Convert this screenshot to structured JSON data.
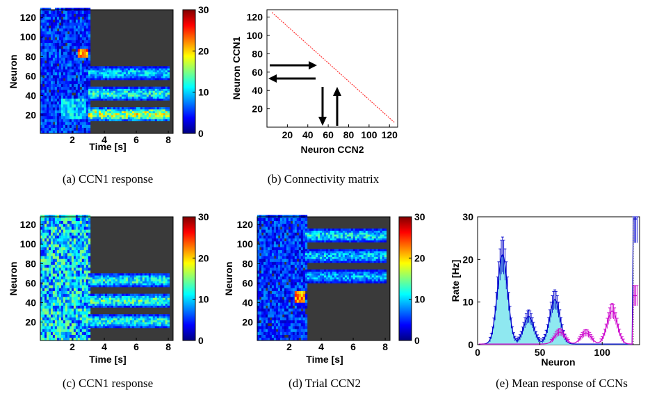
{
  "colorbar": {
    "min": 0,
    "max": 30,
    "ticks": [
      0,
      10,
      20,
      30
    ]
  },
  "chart_data": [
    {
      "id": "a",
      "type": "heatmap",
      "caption": "(a) CCN1 response",
      "xlabel": "Time [s]",
      "ylabel": "Neuron",
      "xlim": [
        0,
        8.3
      ],
      "ylim": [
        1,
        128
      ],
      "xticks": [
        2,
        4,
        6,
        8
      ],
      "yticks": [
        20,
        40,
        60,
        80,
        100,
        120
      ],
      "stim_end_s": 3.0,
      "input_bursts": [
        {
          "neuron": 82,
          "t_start": 2.3,
          "t_end": 2.9
        }
      ],
      "bands": [
        {
          "neuron": 20,
          "t_start": 3.0,
          "t_end": 8.0,
          "level": 18
        },
        {
          "neuron": 41,
          "t_start": 3.0,
          "t_end": 8.0,
          "level": 13
        },
        {
          "neuron": 62,
          "t_start": 3.0,
          "t_end": 8.0,
          "level": 11
        }
      ]
    },
    {
      "id": "b",
      "type": "line",
      "caption": "(b) Connectivity matrix",
      "xlabel": "Neuron CCN2",
      "ylabel": "Neuron CCN1",
      "xlim": [
        0,
        128
      ],
      "ylim": [
        0,
        128
      ],
      "xticks": [
        20,
        40,
        60,
        80,
        100,
        120
      ],
      "yticks": [
        20,
        40,
        60,
        80,
        100,
        120
      ],
      "diagonal": {
        "x": [
          5,
          125
        ],
        "y": [
          125,
          5
        ],
        "color": "#ff3333"
      }
    },
    {
      "id": "c",
      "type": "heatmap",
      "caption": "(c) CCN1 response",
      "xlabel": "Time [s]",
      "ylabel": "Neuron",
      "xlim": [
        0,
        8.3
      ],
      "ylim": [
        1,
        128
      ],
      "xticks": [
        2,
        4,
        6,
        8
      ],
      "yticks": [
        20,
        40,
        60,
        80,
        100,
        120
      ],
      "stim_end_s": 3.0,
      "bands": [
        {
          "neuron": 20,
          "t_start": 3.0,
          "t_end": 8.0,
          "level": 13
        },
        {
          "neuron": 41,
          "t_start": 3.0,
          "t_end": 8.0,
          "level": 14
        },
        {
          "neuron": 62,
          "t_start": 3.0,
          "t_end": 8.0,
          "level": 13
        }
      ]
    },
    {
      "id": "d",
      "type": "heatmap",
      "caption": "(d) Trial CCN2",
      "xlabel": "Time [s]",
      "ylabel": "Neuron",
      "xlim": [
        0,
        8.3
      ],
      "ylim": [
        1,
        128
      ],
      "xticks": [
        2,
        4,
        6,
        8
      ],
      "yticks": [
        20,
        40,
        60,
        80,
        100,
        120
      ],
      "stim_end_s": 3.0,
      "input_bursts": [
        {
          "neuron": 45,
          "t_start": 2.3,
          "t_end": 2.9
        }
      ],
      "bands": [
        {
          "neuron": 66,
          "t_start": 3.0,
          "t_end": 8.0,
          "level": 10
        },
        {
          "neuron": 87,
          "t_start": 3.0,
          "t_end": 8.0,
          "level": 11
        },
        {
          "neuron": 108,
          "t_start": 3.0,
          "t_end": 8.0,
          "level": 12
        }
      ]
    },
    {
      "id": "e",
      "type": "line",
      "caption": "(e) Mean response of CCNs",
      "xlabel": "Neuron",
      "ylabel": "Rate [Hz]",
      "xlim": [
        0,
        130
      ],
      "ylim": [
        0,
        30
      ],
      "xticks": [
        0,
        50,
        100
      ],
      "yticks": [
        0,
        10,
        20,
        30
      ],
      "series": [
        {
          "color": "#0000cc",
          "fill": "#8fe8f0",
          "peaks": [
            {
              "center": 20,
              "amp": 21
            },
            {
              "center": 41,
              "amp": 6.5
            },
            {
              "center": 62,
              "amp": 10.5
            }
          ]
        },
        {
          "color": "#cc00cc",
          "peaks": [
            {
              "center": 66,
              "amp": 2.8
            },
            {
              "center": 87,
              "amp": 2.6
            },
            {
              "center": 108,
              "amp": 7.8
            }
          ]
        }
      ],
      "cutoff_neuron": 125
    }
  ]
}
